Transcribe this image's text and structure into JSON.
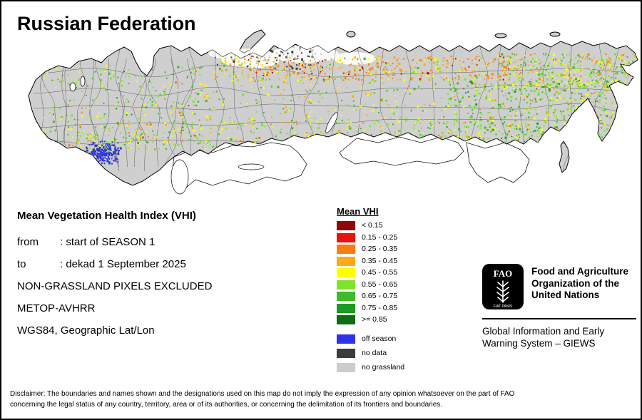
{
  "title": "Russian Federation",
  "info": {
    "heading": "Mean Vegetation Health Index (VHI)",
    "lines": [
      {
        "label": "from",
        "text": ": start of SEASON 1"
      },
      {
        "label": "to",
        "text": ": dekad 1 September 2025"
      },
      {
        "label": "",
        "text": "NON-GRASSLAND PIXELS EXCLUDED"
      },
      {
        "label": "",
        "text": "METOP-AVHRR"
      },
      {
        "label": "",
        "text": "WGS84, Geographic Lat/Lon"
      }
    ]
  },
  "legend": {
    "title": "Mean VHI",
    "classes": [
      {
        "label": "< 0.15",
        "color": "#8e0a0a"
      },
      {
        "label": "0.15 - 0.25",
        "color": "#e8130c"
      },
      {
        "label": "0.25 - 0.35",
        "color": "#f87d12"
      },
      {
        "label": "0.35 - 0.45",
        "color": "#fbab18"
      },
      {
        "label": "0.45 - 0.55",
        "color": "#ffff00"
      },
      {
        "label": "0.55 - 0.65",
        "color": "#7de32b"
      },
      {
        "label": "0.65 - 0.75",
        "color": "#3dbb2a"
      },
      {
        "label": "0.75 - 0.85",
        "color": "#1d9a22"
      },
      {
        "label": ">= 0.85",
        "color": "#0b6e14"
      }
    ],
    "extra": [
      {
        "label": "off season",
        "color": "#2f33e8"
      },
      {
        "label": "no data",
        "color": "#3c3c3c"
      },
      {
        "label": "no grassland",
        "color": "#cccccc"
      }
    ]
  },
  "map": {
    "land_color": "#cfcfcf",
    "boundary_color": "#2b2b2b",
    "water_color": "#ffffff"
  },
  "fao": {
    "logo_text": "FAO",
    "logo_motto": "FIAT PANIS",
    "org_lines": [
      "Food and Agriculture",
      "Organization of the",
      "United Nations"
    ],
    "giews_lines": [
      "Global Information and Early",
      "Warning System – GIEWS"
    ]
  },
  "disclaimer": {
    "line1": "Disclaimer: The boundaries and names shown and the designations used on this map do not imply the expression of any opinion whatsoever on the part of FAO",
    "line2": "concerning the legal status of any country, territory, area or of its authorities, or concerning the delimitation of its frontiers and boundaries."
  }
}
